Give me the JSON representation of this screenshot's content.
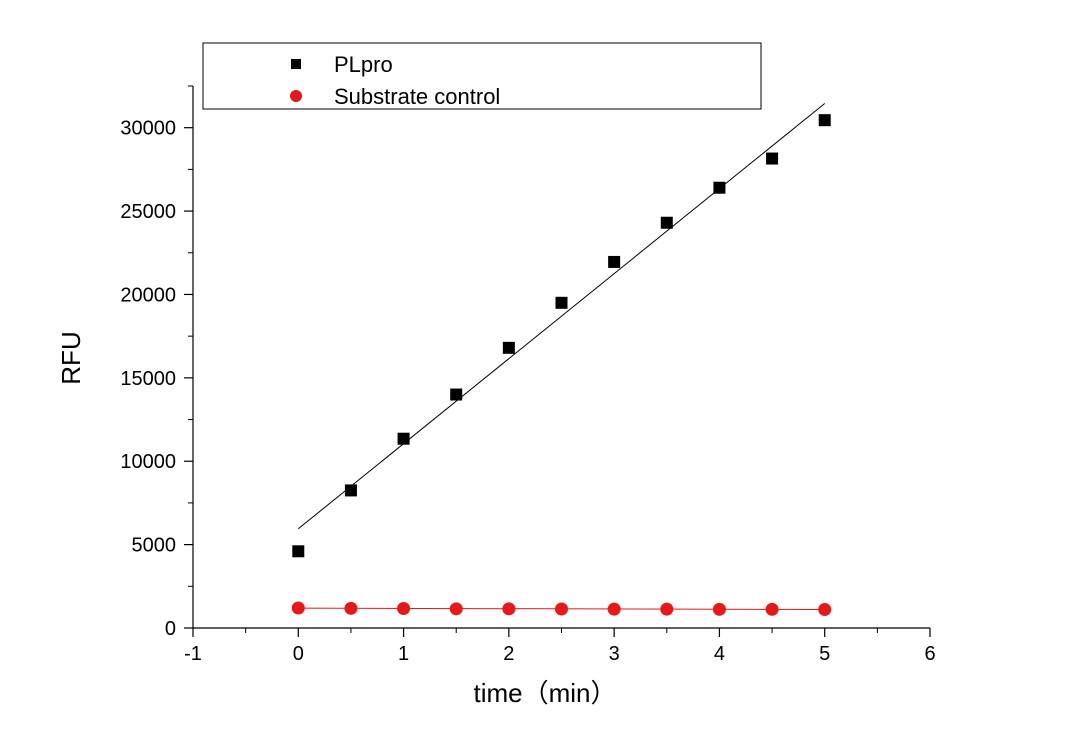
{
  "chart_data": {
    "type": "scatter",
    "title": "",
    "xlabel": "time（min）",
    "ylabel": "RFU",
    "xlim": [
      -1,
      6
    ],
    "ylim": [
      0,
      32500
    ],
    "xticks": [
      -1,
      0,
      1,
      2,
      3,
      4,
      5,
      6
    ],
    "xtick_labels": [
      "-1",
      "0",
      "1",
      "2",
      "3",
      "4",
      "5",
      "6"
    ],
    "yticks": [
      0,
      5000,
      10000,
      15000,
      20000,
      25000,
      30000
    ],
    "ytick_labels": [
      "0",
      "5000",
      "10000",
      "15000",
      "20000",
      "25000",
      "30000"
    ],
    "grid": false,
    "legend_position": "top",
    "series": [
      {
        "name": "PLpro",
        "marker": "square",
        "color": "#000000",
        "x": [
          0,
          0.5,
          1,
          1.5,
          2,
          2.5,
          3,
          3.5,
          4,
          4.5,
          5
        ],
        "y": [
          4600,
          8250,
          11350,
          14000,
          16800,
          19500,
          21950,
          24300,
          26400,
          28150,
          30450
        ],
        "fit": {
          "x": [
            0,
            5
          ],
          "y": [
            5950,
            31450
          ],
          "color": "#000000"
        }
      },
      {
        "name": "Substrate control",
        "marker": "circle",
        "color": "#e81818",
        "x": [
          0,
          0.5,
          1,
          1.5,
          2,
          2.5,
          3,
          3.5,
          4,
          4.5,
          5
        ],
        "y": [
          1200,
          1180,
          1170,
          1150,
          1150,
          1140,
          1130,
          1130,
          1120,
          1120,
          1110
        ],
        "fit": {
          "x": [
            0,
            5
          ],
          "y": [
            1190,
            1110
          ],
          "color": "#e81818"
        }
      }
    ]
  }
}
